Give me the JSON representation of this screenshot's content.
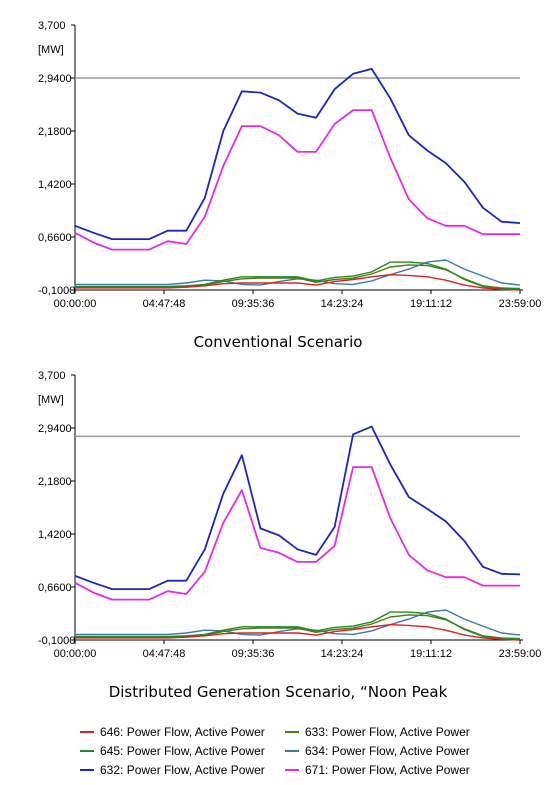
{
  "colors": {
    "646": "#e02020",
    "645": "#1f8f1f",
    "632": "#1c25c2",
    "633": "#4f7a19",
    "634": "#3d78a8",
    "671": "#e62ae6",
    "reference": "#9a9a9a"
  },
  "chart_data": [
    {
      "type": "line",
      "title": "Conventional Scenario",
      "ylabel": "[MW]",
      "ylim": [
        -0.1,
        3.7
      ],
      "y_ticks": [
        "3,700",
        "2,9400",
        "2,1800",
        "1,4200",
        "0,6600",
        "-0,1000"
      ],
      "y_tick_values": [
        3.7,
        2.94,
        2.18,
        1.42,
        0.66,
        -0.1
      ],
      "x_ticks": [
        "00:00:00",
        "04:47:48",
        "09:35:36",
        "14:23:24",
        "19:11:12",
        "23:59:00"
      ],
      "x_hours": [
        0,
        1,
        2,
        3,
        4,
        5,
        6,
        7,
        8,
        9,
        10,
        11,
        12,
        13,
        14,
        15,
        16,
        17,
        18,
        19,
        20,
        21,
        22,
        23,
        24
      ],
      "reference_line": 2.94,
      "series": [
        {
          "name": "632: Power Flow, Active Power",
          "key": "632",
          "values": [
            0.82,
            0.72,
            0.63,
            0.63,
            0.63,
            0.75,
            0.75,
            1.22,
            2.18,
            2.75,
            2.73,
            2.62,
            2.43,
            2.37,
            2.78,
            3.0,
            3.07,
            2.65,
            2.12,
            1.9,
            1.72,
            1.45,
            1.08,
            0.88,
            0.86
          ]
        },
        {
          "name": "671: Power Flow, Active Power",
          "key": "671",
          "values": [
            0.72,
            0.58,
            0.48,
            0.48,
            0.48,
            0.6,
            0.56,
            0.95,
            1.68,
            2.25,
            2.25,
            2.12,
            1.88,
            1.88,
            2.28,
            2.48,
            2.48,
            1.8,
            1.2,
            0.93,
            0.82,
            0.82,
            0.7,
            0.7,
            0.7
          ]
        },
        {
          "name": "646: Power Flow, Active Power",
          "key": "646",
          "values": [
            -0.07,
            -0.07,
            -0.07,
            -0.07,
            -0.07,
            -0.07,
            -0.06,
            -0.04,
            -0.01,
            0.0,
            0.0,
            0.0,
            0.0,
            -0.03,
            0.02,
            0.05,
            0.09,
            0.12,
            0.11,
            0.09,
            0.04,
            -0.03,
            -0.07,
            -0.09,
            -0.1
          ]
        },
        {
          "name": "645: Power Flow, Active Power",
          "key": "645",
          "values": [
            -0.05,
            -0.05,
            -0.05,
            -0.05,
            -0.05,
            -0.05,
            -0.04,
            -0.02,
            0.04,
            0.09,
            0.09,
            0.09,
            0.09,
            0.03,
            0.08,
            0.1,
            0.16,
            0.3,
            0.3,
            0.28,
            0.2,
            0.05,
            -0.05,
            -0.08,
            -0.08
          ]
        },
        {
          "name": "633: Power Flow, Active Power",
          "key": "633",
          "values": [
            -0.06,
            -0.06,
            -0.06,
            -0.06,
            -0.06,
            -0.06,
            -0.05,
            -0.03,
            0.02,
            0.06,
            0.07,
            0.07,
            0.07,
            0.01,
            0.05,
            0.07,
            0.13,
            0.23,
            0.26,
            0.25,
            0.19,
            0.06,
            -0.04,
            -0.07,
            -0.08
          ]
        },
        {
          "name": "634: Power Flow, Active Power",
          "key": "634",
          "values": [
            -0.02,
            -0.02,
            -0.02,
            -0.02,
            -0.02,
            -0.02,
            0.0,
            0.04,
            0.03,
            -0.02,
            -0.03,
            0.02,
            0.06,
            0.04,
            -0.01,
            -0.02,
            0.03,
            0.12,
            0.2,
            0.3,
            0.33,
            0.2,
            0.1,
            0.0,
            -0.03
          ]
        }
      ]
    },
    {
      "type": "line",
      "title": "Distributed Generation Scenario, “Noon Peak",
      "ylabel": "[MW]",
      "ylim": [
        -0.1,
        3.7
      ],
      "y_ticks": [
        "3,700",
        "2,9400",
        "2,1800",
        "1,4200",
        "0,6600",
        "-0,1000"
      ],
      "y_tick_values": [
        3.7,
        2.94,
        2.18,
        1.42,
        0.66,
        -0.1
      ],
      "x_ticks": [
        "00:00:00",
        "04:47:48",
        "09:35:36",
        "14:23:24",
        "19:11:12",
        "23:59:00"
      ],
      "x_hours": [
        0,
        1,
        2,
        3,
        4,
        5,
        6,
        7,
        8,
        9,
        10,
        11,
        12,
        13,
        14,
        15,
        16,
        17,
        18,
        19,
        20,
        21,
        22,
        23,
        24
      ],
      "reference_line": 2.82,
      "series": [
        {
          "name": "632: Power Flow, Active Power",
          "key": "632",
          "values": [
            0.82,
            0.72,
            0.63,
            0.63,
            0.63,
            0.75,
            0.75,
            1.2,
            2.0,
            2.55,
            1.5,
            1.4,
            1.2,
            1.12,
            1.52,
            2.85,
            2.96,
            2.42,
            1.95,
            1.78,
            1.6,
            1.32,
            0.95,
            0.85,
            0.84
          ]
        },
        {
          "name": "671: Power Flow, Active Power",
          "key": "671",
          "values": [
            0.72,
            0.58,
            0.48,
            0.48,
            0.48,
            0.6,
            0.56,
            0.88,
            1.58,
            2.05,
            1.22,
            1.15,
            1.02,
            1.02,
            1.25,
            2.38,
            2.38,
            1.65,
            1.12,
            0.9,
            0.8,
            0.8,
            0.68,
            0.68,
            0.68
          ]
        },
        {
          "name": "646: Power Flow, Active Power",
          "key": "646",
          "values": [
            -0.07,
            -0.07,
            -0.07,
            -0.07,
            -0.07,
            -0.07,
            -0.06,
            -0.04,
            -0.01,
            0.0,
            0.0,
            0.0,
            0.0,
            -0.03,
            0.02,
            0.05,
            0.09,
            0.12,
            0.11,
            0.09,
            0.04,
            -0.03,
            -0.07,
            -0.09,
            -0.1
          ]
        },
        {
          "name": "645: Power Flow, Active Power",
          "key": "645",
          "values": [
            -0.05,
            -0.05,
            -0.05,
            -0.05,
            -0.05,
            -0.05,
            -0.04,
            -0.02,
            0.04,
            0.09,
            0.09,
            0.09,
            0.09,
            0.03,
            0.08,
            0.1,
            0.16,
            0.3,
            0.3,
            0.28,
            0.2,
            0.05,
            -0.05,
            -0.08,
            -0.08
          ]
        },
        {
          "name": "633: Power Flow, Active Power",
          "key": "633",
          "values": [
            -0.06,
            -0.06,
            -0.06,
            -0.06,
            -0.06,
            -0.06,
            -0.05,
            -0.03,
            0.02,
            0.06,
            0.07,
            0.07,
            0.07,
            0.01,
            0.05,
            0.07,
            0.13,
            0.23,
            0.26,
            0.25,
            0.19,
            0.06,
            -0.04,
            -0.07,
            -0.08
          ]
        },
        {
          "name": "634: Power Flow, Active Power",
          "key": "634",
          "values": [
            -0.02,
            -0.02,
            -0.02,
            -0.02,
            -0.02,
            -0.02,
            0.0,
            0.04,
            0.03,
            -0.02,
            -0.03,
            0.02,
            0.06,
            0.04,
            -0.01,
            -0.02,
            0.03,
            0.12,
            0.2,
            0.3,
            0.33,
            0.2,
            0.1,
            0.0,
            -0.03
          ]
        }
      ]
    }
  ],
  "legend": {
    "rows": [
      [
        {
          "key": "646",
          "label": "646: Power Flow, Active Power"
        },
        {
          "key": "633",
          "label": "633: Power Flow, Active Power"
        }
      ],
      [
        {
          "key": "645",
          "label": "645: Power Flow, Active Power"
        },
        {
          "key": "634",
          "label": "634: Power Flow, Active Power"
        }
      ],
      [
        {
          "key": "632",
          "label": "632: Power Flow, Active Power"
        },
        {
          "key": "671",
          "label": "671: Power Flow, Active Power"
        }
      ]
    ]
  }
}
